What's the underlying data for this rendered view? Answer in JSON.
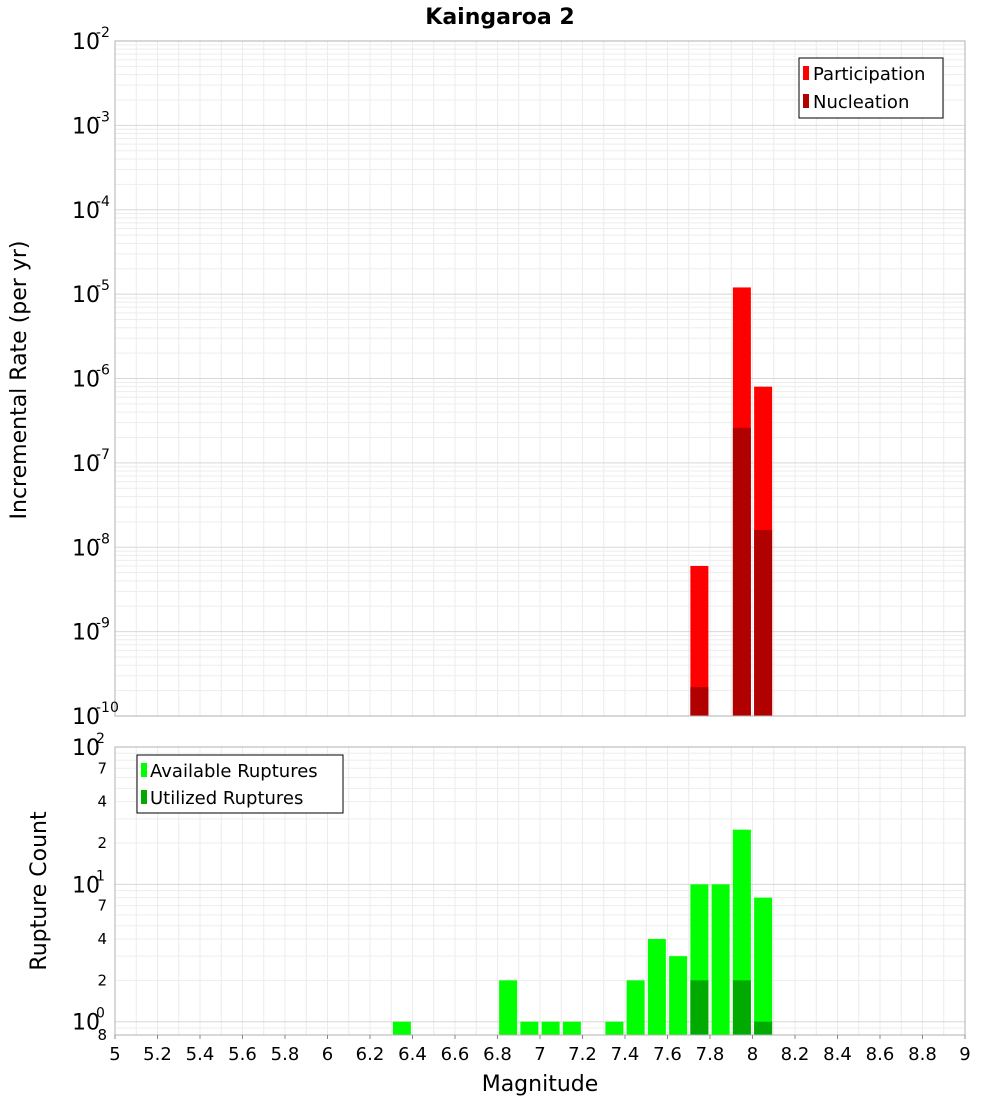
{
  "chart_data": [
    {
      "type": "bar",
      "title": "Kaingaroa 2",
      "xlabel": "",
      "ylabel": "Incremental Rate (per yr)",
      "yscale": "log",
      "ylim": [
        1e-10,
        0.01
      ],
      "xlim": [
        5,
        9
      ],
      "grid": true,
      "legend_position": "top-right",
      "series": [
        {
          "name": "Participation",
          "color": "#ff0000",
          "x": [
            7.75,
            7.95,
            8.05
          ],
          "values": [
            6e-09,
            1.2e-05,
            8e-07
          ]
        },
        {
          "name": "Nucleation",
          "color": "#b00000",
          "x": [
            7.75,
            7.95,
            8.05
          ],
          "values": [
            2.2e-10,
            2.6e-07,
            1.6e-08
          ]
        }
      ],
      "y_ticks": [
        {
          "base": "10",
          "exp": "-2"
        },
        {
          "base": "10",
          "exp": "-3"
        },
        {
          "base": "10",
          "exp": "-4"
        },
        {
          "base": "10",
          "exp": "-5"
        },
        {
          "base": "10",
          "exp": "-6"
        },
        {
          "base": "10",
          "exp": "-7"
        },
        {
          "base": "10",
          "exp": "-8"
        },
        {
          "base": "10",
          "exp": "-9"
        },
        {
          "base": "10",
          "exp": "-10"
        }
      ]
    },
    {
      "type": "bar",
      "title": "",
      "xlabel": "Magnitude",
      "ylabel": "Rupture Count",
      "yscale": "log",
      "ylim": [
        0.8,
        100
      ],
      "xlim": [
        5,
        9
      ],
      "grid": true,
      "legend_position": "top-left",
      "series": [
        {
          "name": "Available Ruptures",
          "color": "#00ff00",
          "x": [
            6.35,
            6.85,
            6.95,
            7.05,
            7.15,
            7.35,
            7.45,
            7.55,
            7.65,
            7.75,
            7.85,
            7.95,
            8.05
          ],
          "values": [
            1,
            2,
            1,
            1,
            1,
            1,
            2,
            4,
            3,
            10,
            10,
            25,
            8
          ]
        },
        {
          "name": "Utilized Ruptures",
          "color": "#00aa00",
          "x": [
            7.75,
            7.95,
            8.05
          ],
          "values": [
            2,
            2,
            1
          ]
        }
      ],
      "y_major_ticks": [
        {
          "base": "10",
          "exp": "2"
        },
        {
          "base": "10",
          "exp": "1"
        },
        {
          "base": "10",
          "exp": "0"
        }
      ],
      "y_minor_tick_labels": [
        "7",
        "4",
        "2",
        "7",
        "4",
        "2",
        "8"
      ],
      "x_tick_labels": [
        "5",
        "5.2",
        "5.4",
        "5.6",
        "5.8",
        "6",
        "6.2",
        "6.4",
        "6.6",
        "6.8",
        "7",
        "7.2",
        "7.4",
        "7.6",
        "7.8",
        "8",
        "8.2",
        "8.4",
        "8.6",
        "8.8",
        "9"
      ]
    }
  ]
}
